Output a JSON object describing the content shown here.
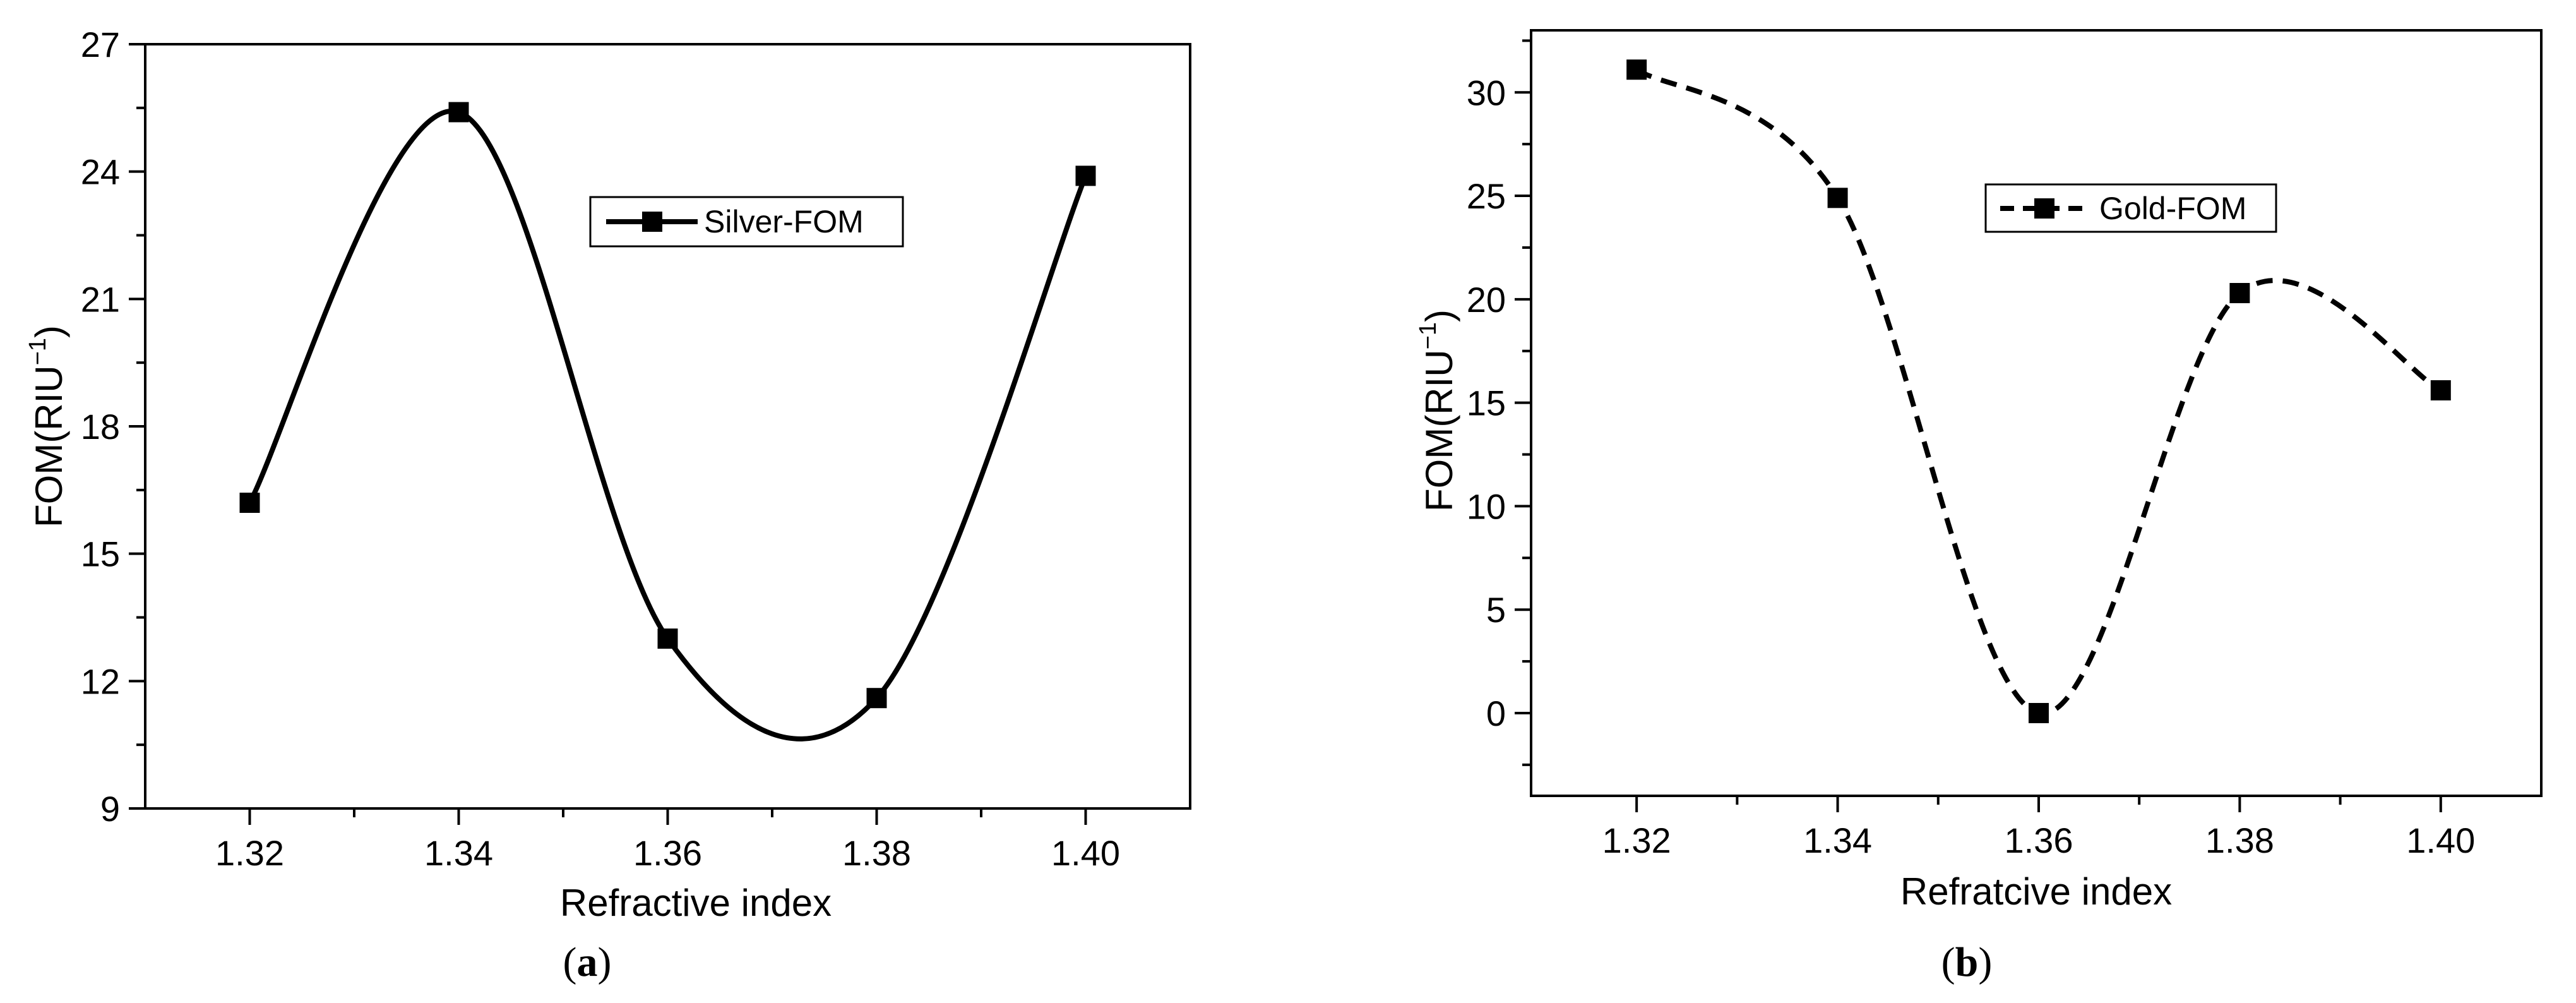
{
  "chart_data": [
    {
      "type": "line",
      "panel_label": "a",
      "xlabel": "Refractive index",
      "ylabel": "FOM(RIU",
      "ylabel_superscript": "−1",
      "ylabel_close": ")",
      "xlim": [
        1.31,
        1.41
      ],
      "ylim": [
        9,
        27
      ],
      "x_ticks": [
        1.32,
        1.34,
        1.36,
        1.38,
        1.4
      ],
      "x_tick_labels": [
        "1.32",
        "1.34",
        "1.36",
        "1.38",
        "1.40"
      ],
      "y_ticks": [
        9,
        12,
        15,
        18,
        21,
        24,
        27
      ],
      "y_tick_labels": [
        "9",
        "12",
        "15",
        "18",
        "21",
        "24",
        "27"
      ],
      "grid": false,
      "legend_position": "top-right",
      "series": [
        {
          "name": "Silver-FOM",
          "line_style": "solid",
          "marker": "square",
          "x": [
            1.32,
            1.34,
            1.36,
            1.38,
            1.4
          ],
          "y": [
            16.2,
            25.4,
            13.0,
            11.6,
            23.9
          ]
        }
      ],
      "color": "#000000"
    },
    {
      "type": "line",
      "panel_label": "b",
      "xlabel": "Refratcive index",
      "ylabel": "FOM(RIU",
      "ylabel_superscript": "−1",
      "ylabel_close": ")",
      "xlim": [
        1.3095,
        1.41
      ],
      "ylim": [
        -4,
        33
      ],
      "x_ticks": [
        1.32,
        1.34,
        1.36,
        1.38,
        1.4
      ],
      "x_tick_labels": [
        "1.32",
        "1.34",
        "1.36",
        "1.38",
        "1.40"
      ],
      "y_ticks": [
        0,
        5,
        10,
        15,
        20,
        25,
        30
      ],
      "y_tick_labels": [
        "0",
        "5",
        "10",
        "15",
        "20",
        "25",
        "30"
      ],
      "grid": false,
      "legend_position": "top-right",
      "series": [
        {
          "name": "Gold-FOM",
          "line_style": "dashed",
          "marker": "square",
          "x": [
            1.32,
            1.34,
            1.36,
            1.38,
            1.4
          ],
          "y": [
            31.1,
            24.9,
            0.0,
            20.3,
            15.6
          ]
        }
      ],
      "color": "#000000"
    }
  ]
}
